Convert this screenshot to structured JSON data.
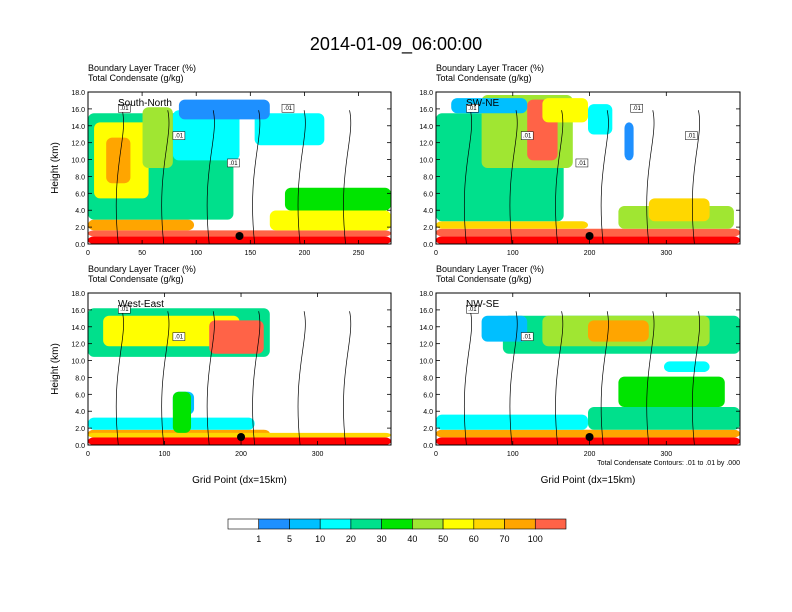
{
  "title": "2014-01-09_06:00:00",
  "panels": [
    {
      "id": "sn",
      "label": "South-North",
      "line1": "Boundary Layer Tracer   (%)",
      "line2": "Total Condensate   (g/kg)",
      "ylabel": "Height (km)",
      "xlabel": "",
      "xticks": [
        "0",
        "50",
        "100",
        "150",
        "200",
        "250"
      ],
      "xvals": [
        0,
        50,
        100,
        150,
        200,
        250
      ],
      "xmax": 280,
      "marker_x": 140,
      "contour_labels": [
        ".01",
        ".01",
        ".01",
        ".01"
      ]
    },
    {
      "id": "swne",
      "label": "SW-NE",
      "line1": "Boundary Layer Tracer   (%)",
      "line2": "Total Condensate   (g/kg)",
      "ylabel": "",
      "xlabel": "",
      "xticks": [
        "0",
        "100",
        "200",
        "300"
      ],
      "xvals": [
        0,
        100,
        200,
        300
      ],
      "xmax": 396,
      "marker_x": 200,
      "contour_labels": [
        ".01",
        ".01",
        ".01",
        ".01",
        ".01"
      ]
    },
    {
      "id": "we",
      "label": "West-East",
      "line1": "Boundary Layer Tracer   (%)",
      "line2": "Total Condensate   (g/kg)",
      "ylabel": "Height (km)",
      "xlabel": "Grid Point (dx=15km)",
      "xticks": [
        "0",
        "100",
        "200",
        "300"
      ],
      "xvals": [
        0,
        100,
        200,
        300
      ],
      "xmax": 396,
      "marker_x": 200,
      "contour_labels": [
        ".01",
        ".01"
      ]
    },
    {
      "id": "nwse",
      "label": "NW-SE",
      "line1": "Boundary Layer Tracer   (%)",
      "line2": "Total Condensate   (g/kg)",
      "ylabel": "",
      "xlabel": "Grid Point (dx=15km)",
      "xticks": [
        "0",
        "100",
        "200",
        "300"
      ],
      "xvals": [
        0,
        100,
        200,
        300
      ],
      "xmax": 396,
      "marker_x": 200,
      "contour_labels": [
        ".01",
        ".01"
      ],
      "note": "Total Condensate Contours: .01 to .01 by .000"
    }
  ],
  "yticks": [
    "0.0",
    "2.0",
    "4.0",
    "6.0",
    "8.0",
    "10.0",
    "12.0",
    "14.0",
    "16.0",
    "18.0"
  ],
  "colorbar": {
    "labels": [
      "1",
      "5",
      "10",
      "20",
      "30",
      "40",
      "50",
      "60",
      "70",
      "100"
    ],
    "colors": [
      "#ffffff",
      "#1e90ff",
      "#00bfff",
      "#00ffff",
      "#00e08c",
      "#00e400",
      "#a0e632",
      "#ffff00",
      "#ffd700",
      "#ffa500",
      "#ff6347",
      "#ff0000"
    ]
  },
  "chart_data": [
    {
      "type": "heatmap",
      "title": "South-North",
      "xlabel": "",
      "ylabel": "Height (km)",
      "xlim": [
        0,
        280
      ],
      "ylim": [
        0,
        18
      ],
      "legend": "Boundary Layer Tracer (%)",
      "levels": [
        1,
        5,
        10,
        20,
        30,
        40,
        50,
        60,
        70,
        100
      ],
      "contours": {
        "field": "Total Condensate (g/kg)",
        "levels": [
          0.01
        ]
      }
    },
    {
      "type": "heatmap",
      "title": "SW-NE",
      "xlabel": "",
      "ylabel": "",
      "xlim": [
        0,
        396
      ],
      "ylim": [
        0,
        18
      ],
      "legend": "Boundary Layer Tracer (%)",
      "levels": [
        1,
        5,
        10,
        20,
        30,
        40,
        50,
        60,
        70,
        100
      ],
      "contours": {
        "field": "Total Condensate (g/kg)",
        "levels": [
          0.01
        ]
      }
    },
    {
      "type": "heatmap",
      "title": "West-East",
      "xlabel": "Grid Point (dx=15km)",
      "ylabel": "Height (km)",
      "xlim": [
        0,
        396
      ],
      "ylim": [
        0,
        18
      ],
      "legend": "Boundary Layer Tracer (%)",
      "levels": [
        1,
        5,
        10,
        20,
        30,
        40,
        50,
        60,
        70,
        100
      ],
      "contours": {
        "field": "Total Condensate (g/kg)",
        "levels": [
          0.01
        ]
      }
    },
    {
      "type": "heatmap",
      "title": "NW-SE",
      "xlabel": "Grid Point (dx=15km)",
      "ylabel": "",
      "xlim": [
        0,
        396
      ],
      "ylim": [
        0,
        18
      ],
      "legend": "Boundary Layer Tracer (%)",
      "levels": [
        1,
        5,
        10,
        20,
        30,
        40,
        50,
        60,
        70,
        100
      ],
      "contours": {
        "field": "Total Condensate (g/kg)",
        "levels": [
          0.01
        ]
      }
    }
  ]
}
